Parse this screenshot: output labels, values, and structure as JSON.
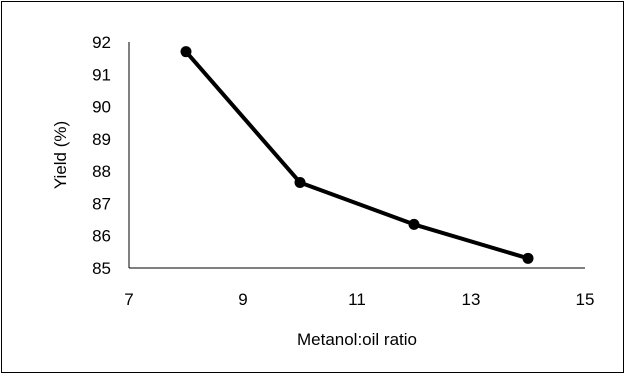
{
  "chart_data": {
    "type": "line",
    "title": "",
    "xlabel": "Metanol:oil ratio",
    "ylabel": "Yield (%)",
    "xlim": [
      7,
      15
    ],
    "ylim": [
      85,
      92
    ],
    "xticks": [
      7,
      9,
      11,
      13,
      15
    ],
    "yticks": [
      85,
      86,
      87,
      88,
      89,
      90,
      91,
      92
    ],
    "grid": false,
    "legend": "none",
    "series": [
      {
        "x": [
          8,
          10,
          12,
          14
        ],
        "y": [
          91.7,
          87.65,
          86.35,
          85.3
        ],
        "color": "#000000",
        "marker": "circle"
      }
    ]
  }
}
